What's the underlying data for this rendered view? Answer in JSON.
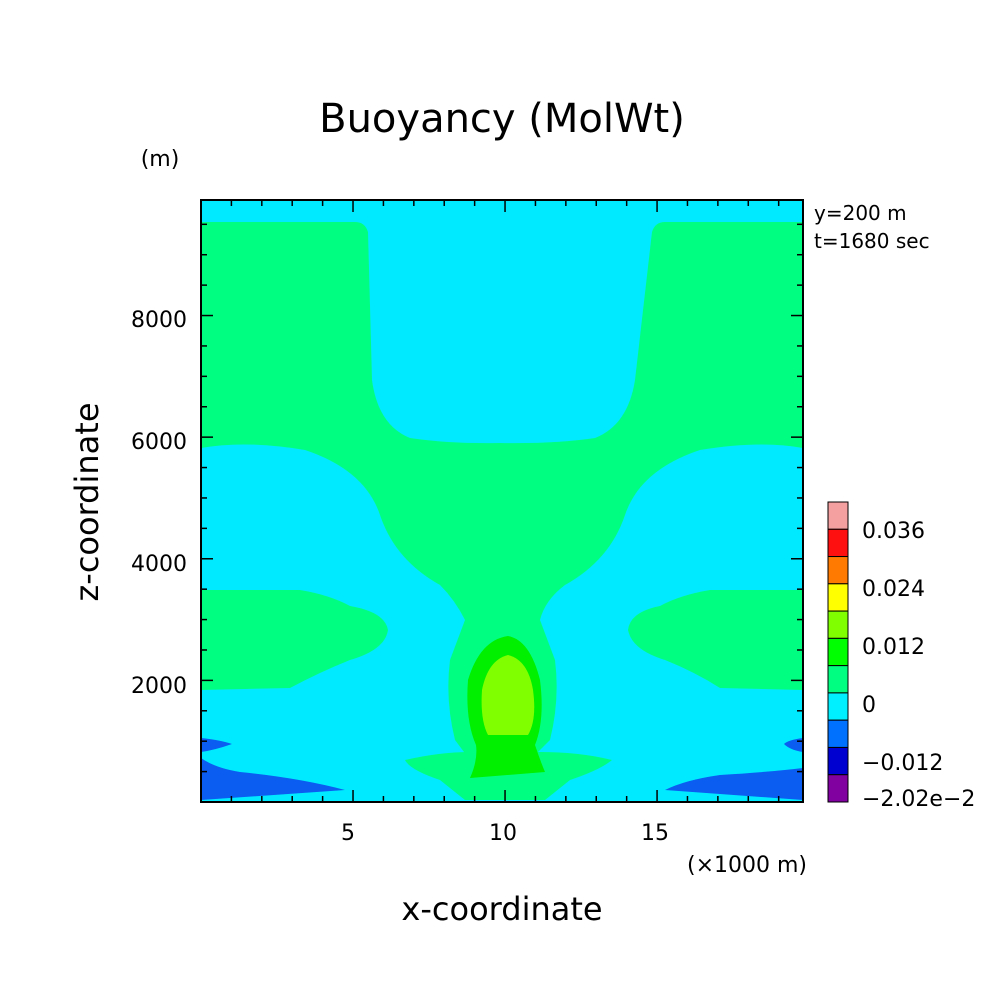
{
  "chart_data": {
    "type": "contour",
    "title": "Buoyancy (MolWt)",
    "xlabel": "x-coordinate",
    "ylabel": "z-coordinate",
    "x_unit": "(×1000 m)",
    "y_unit": "(m)",
    "xlim": [
      0,
      19.8
    ],
    "ylim": [
      0,
      9900
    ],
    "x_ticks": [
      "5",
      "10",
      "15"
    ],
    "x_tick_values": [
      5,
      10,
      15
    ],
    "y_ticks": [
      "2000",
      "4000",
      "6000",
      "8000"
    ],
    "y_tick_values": [
      2000,
      4000,
      6000,
      8000
    ],
    "annotations": [
      "y=200 m",
      "t=1680 sec"
    ],
    "colorbar": {
      "labels": [
        "0.036",
        "0.024",
        "0.012",
        "0",
        "−0.012",
        "−2.02e−2"
      ],
      "colors": [
        "#f5a0a0",
        "#ff1010",
        "#ff7a00",
        "#ffff00",
        "#80ff00",
        "#00ff00",
        "#00ff80",
        "#00f0ff",
        "#0070ff",
        "#0000d0",
        "#8000a0"
      ]
    },
    "field_colors": {
      "neg_0_012": "#0b5cf0",
      "neg_small": "#00eaff",
      "pos_small": "#00ff80",
      "pos_0_012": "#00f000",
      "pos_0_018": "#80ff00"
    }
  }
}
